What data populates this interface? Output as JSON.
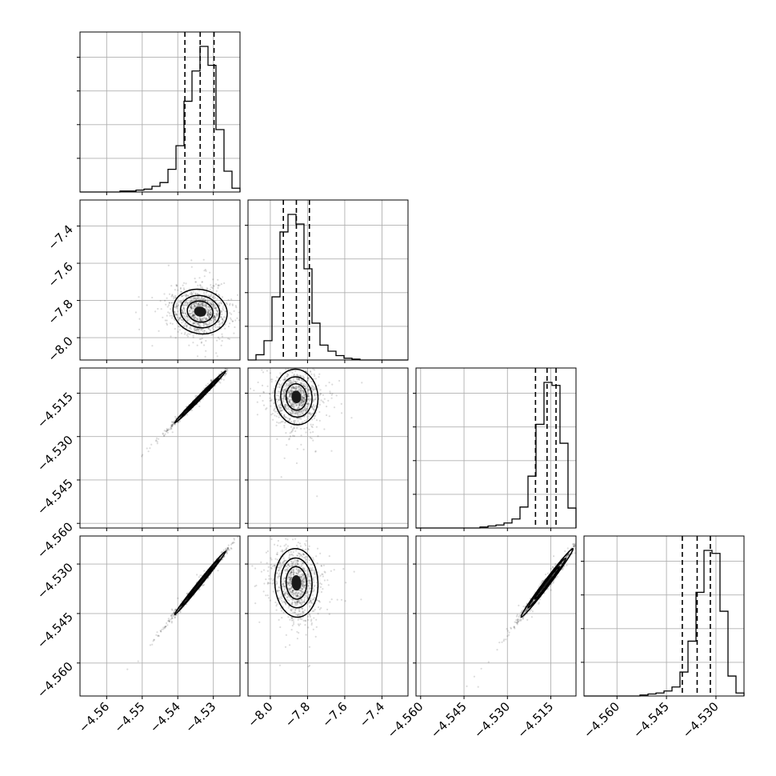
{
  "chart_data": {
    "type": "corner",
    "parameters": [
      {
        "range": [
          -4.5675,
          -4.5225
        ],
        "ticks": [
          -4.56,
          -4.55,
          -4.54,
          -4.53
        ],
        "tick_labels": [
          "−4.56",
          "−4.55",
          "−4.54",
          "−4.53"
        ],
        "quantiles": [
          -4.538,
          -4.5337,
          -4.5298
        ],
        "histogram": [
          0,
          0,
          0,
          0,
          0,
          1,
          1,
          2,
          3,
          6,
          10,
          24,
          49,
          96,
          128,
          154,
          134,
          66,
          22,
          4
        ]
      },
      {
        "range": [
          -8.12,
          -7.26
        ],
        "ticks": [
          -8.0,
          -7.8,
          -7.6,
          -7.4
        ],
        "tick_labels": [
          "−8.0",
          "−7.8",
          "−7.6",
          "−7.4"
        ],
        "quantiles": [
          -7.93,
          -7.86,
          -7.79
        ],
        "histogram": [
          0,
          6,
          22,
          72,
          146,
          166,
          155,
          104,
          42,
          17,
          10,
          5,
          2,
          1,
          0,
          0,
          0,
          0,
          0,
          0
        ]
      },
      {
        "range": [
          -4.5616,
          -4.5063
        ],
        "ticks": [
          -4.56,
          -4.545,
          -4.53,
          -4.515
        ],
        "tick_labels": [
          "−4.560",
          "−4.545",
          "−4.530",
          "−4.515"
        ],
        "quantiles": [
          -4.5203,
          -4.5163,
          -4.5132
        ],
        "histogram": [
          0,
          0,
          0,
          0,
          0,
          0,
          0,
          0,
          1,
          2,
          3,
          5,
          9,
          21,
          52,
          104,
          146,
          143,
          85,
          20
        ]
      },
      {
        "range": [
          -4.57,
          -4.5215
        ],
        "ticks": [
          -4.56,
          -4.545,
          -4.53
        ],
        "tick_labels": [
          "−4.560",
          "−4.545",
          "−4.530"
        ],
        "quantiles": [
          -4.5402,
          -4.5357,
          -4.5317
        ],
        "histogram": [
          0,
          0,
          0,
          0,
          0,
          0,
          0,
          1,
          2,
          3,
          5,
          9,
          24,
          55,
          104,
          146,
          143,
          85,
          20,
          3
        ]
      }
    ],
    "scatter_panels": [
      {
        "row": 1,
        "col": 0,
        "correlation": -0.1,
        "spread": [
          0.0038,
          0.06
        ]
      },
      {
        "row": 2,
        "col": 0,
        "correlation": 0.995,
        "spread": [
          0.0036,
          0.0045
        ]
      },
      {
        "row": 2,
        "col": 1,
        "correlation": -0.05,
        "spread": [
          0.058,
          0.0048
        ]
      },
      {
        "row": 3,
        "col": 0,
        "correlation": 0.995,
        "spread": [
          0.0036,
          0.0048
        ]
      },
      {
        "row": 3,
        "col": 1,
        "correlation": -0.05,
        "spread": [
          0.058,
          0.0052
        ]
      },
      {
        "row": 3,
        "col": 2,
        "correlation": 0.99,
        "spread": [
          0.0045,
          0.0052
        ]
      }
    ],
    "grid": true,
    "legend": false
  }
}
